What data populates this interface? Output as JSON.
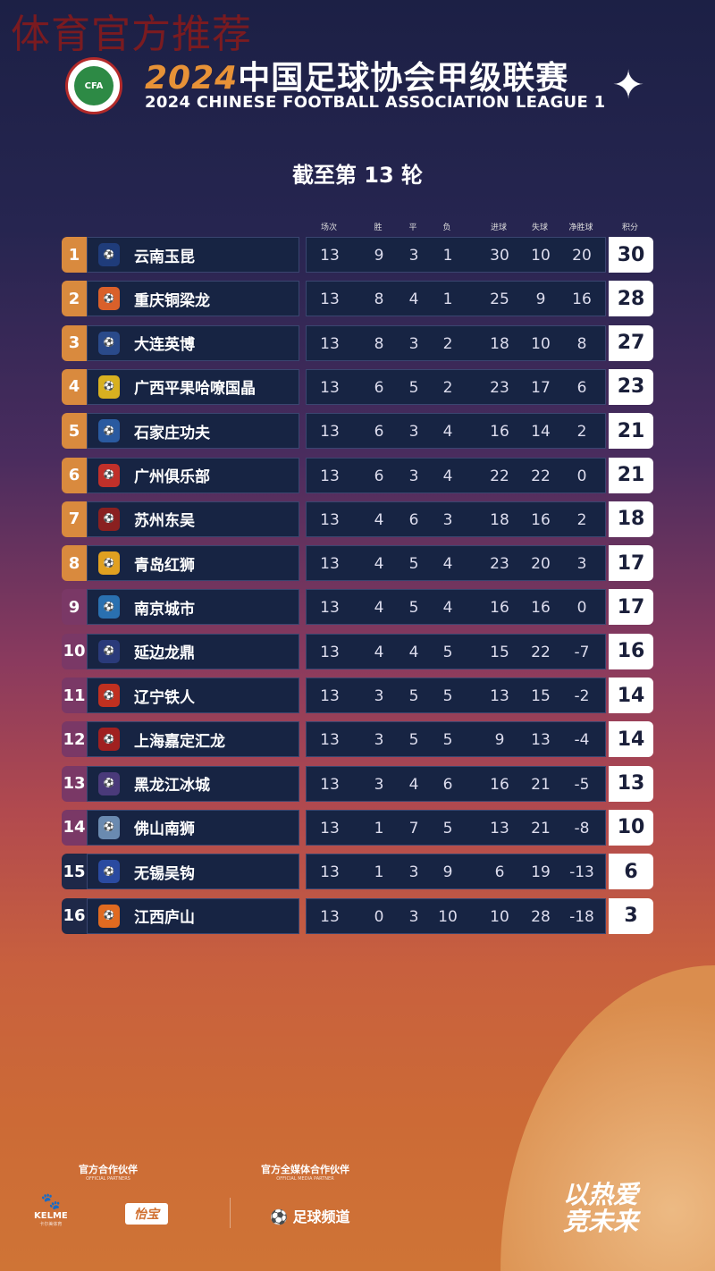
{
  "watermark": "体育官方推荐",
  "header": {
    "title_year": "2024",
    "title_cn": "中国足球协会甲级联赛",
    "title_en": "2024 CHINESE FOOTBALL ASSOCIATION LEAGUE 1",
    "cfa_logo": "CFA"
  },
  "round": "截至第 13 轮",
  "columns": [
    "场次",
    "胜",
    "平",
    "负",
    "进球",
    "失球",
    "净胜球",
    "积分"
  ],
  "colors": {
    "rank_top": "#d98a3e",
    "rank_mid": "#7a3866",
    "rank_bottom": "#1e2848",
    "row_bg": "#172443",
    "accent": "#e79237"
  },
  "teams": [
    {
      "rank": "1",
      "name": "云南玉昆",
      "p": "13",
      "w": "9",
      "d": "3",
      "l": "1",
      "gf": "30",
      "ga": "10",
      "gd": "20",
      "pts": "30",
      "badge": "#1f3c7a"
    },
    {
      "rank": "2",
      "name": "重庆铜梁龙",
      "p": "13",
      "w": "8",
      "d": "4",
      "l": "1",
      "gf": "25",
      "ga": "9",
      "gd": "16",
      "pts": "28",
      "badge": "#d9602a"
    },
    {
      "rank": "3",
      "name": "大连英博",
      "p": "13",
      "w": "8",
      "d": "3",
      "l": "2",
      "gf": "18",
      "ga": "10",
      "gd": "8",
      "pts": "27",
      "badge": "#2a4a8a"
    },
    {
      "rank": "4",
      "name": "广西平果哈嘹国晶",
      "p": "13",
      "w": "6",
      "d": "5",
      "l": "2",
      "gf": "23",
      "ga": "17",
      "gd": "6",
      "pts": "23",
      "badge": "#d8b020"
    },
    {
      "rank": "5",
      "name": "石家庄功夫",
      "p": "13",
      "w": "6",
      "d": "3",
      "l": "4",
      "gf": "16",
      "ga": "14",
      "gd": "2",
      "pts": "21",
      "badge": "#2a5aa0"
    },
    {
      "rank": "6",
      "name": "广州俱乐部",
      "p": "13",
      "w": "6",
      "d": "3",
      "l": "4",
      "gf": "22",
      "ga": "22",
      "gd": "0",
      "pts": "21",
      "badge": "#c0302a"
    },
    {
      "rank": "7",
      "name": "苏州东吴",
      "p": "13",
      "w": "4",
      "d": "6",
      "l": "3",
      "gf": "18",
      "ga": "16",
      "gd": "2",
      "pts": "18",
      "badge": "#8a2020"
    },
    {
      "rank": "8",
      "name": "青岛红狮",
      "p": "13",
      "w": "4",
      "d": "5",
      "l": "4",
      "gf": "23",
      "ga": "20",
      "gd": "3",
      "pts": "17",
      "badge": "#e0a020"
    },
    {
      "rank": "9",
      "name": "南京城市",
      "p": "13",
      "w": "4",
      "d": "5",
      "l": "4",
      "gf": "16",
      "ga": "16",
      "gd": "0",
      "pts": "17",
      "badge": "#2a70b0"
    },
    {
      "rank": "10",
      "name": "延边龙鼎",
      "p": "13",
      "w": "4",
      "d": "4",
      "l": "5",
      "gf": "15",
      "ga": "22",
      "gd": "-7",
      "pts": "16",
      "badge": "#2a3a7a"
    },
    {
      "rank": "11",
      "name": "辽宁铁人",
      "p": "13",
      "w": "3",
      "d": "5",
      "l": "5",
      "gf": "13",
      "ga": "15",
      "gd": "-2",
      "pts": "14",
      "badge": "#c03020"
    },
    {
      "rank": "12",
      "name": "上海嘉定汇龙",
      "p": "13",
      "w": "3",
      "d": "5",
      "l": "5",
      "gf": "9",
      "ga": "13",
      "gd": "-4",
      "pts": "14",
      "badge": "#a02020"
    },
    {
      "rank": "13",
      "name": "黑龙江冰城",
      "p": "13",
      "w": "3",
      "d": "4",
      "l": "6",
      "gf": "16",
      "ga": "21",
      "gd": "-5",
      "pts": "13",
      "badge": "#4a3a7a"
    },
    {
      "rank": "14",
      "name": "佛山南狮",
      "p": "13",
      "w": "1",
      "d": "7",
      "l": "5",
      "gf": "13",
      "ga": "21",
      "gd": "-8",
      "pts": "10",
      "badge": "#6a8ab0"
    },
    {
      "rank": "15",
      "name": "无锡吴钩",
      "p": "13",
      "w": "1",
      "d": "3",
      "l": "9",
      "gf": "6",
      "ga": "19",
      "gd": "-13",
      "pts": "6",
      "badge": "#2a4aa0"
    },
    {
      "rank": "16",
      "name": "江西庐山",
      "p": "13",
      "w": "0",
      "d": "3",
      "l": "10",
      "gf": "10",
      "ga": "28",
      "gd": "-18",
      "pts": "3",
      "badge": "#e06a20"
    }
  ],
  "footer": {
    "partners_cn": "官方合作伙伴",
    "partners_en": "OFFICIAL PARTNERS",
    "media_cn": "官方全媒体合作伙伴",
    "media_en": "OFFICIAL MEDIA PARTNER",
    "kelme": "KELME",
    "kelme_cn": "卡尔美体育",
    "yibao": "怡宝",
    "media_logo": "足球频道",
    "slogan1": "以热爱",
    "slogan2": "竞未来"
  }
}
